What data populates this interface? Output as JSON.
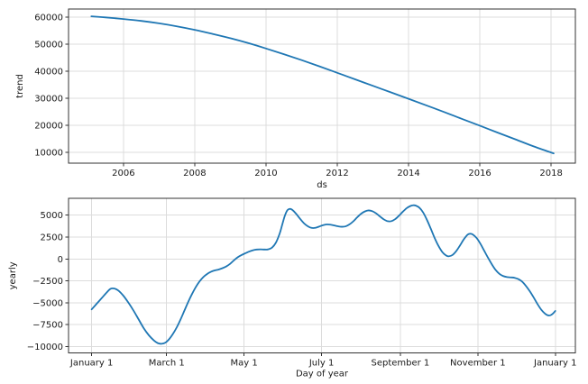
{
  "figure": {
    "background": "#ffffff",
    "text_color": "#1a1a1a",
    "spine_color": "#333333",
    "grid_color": "#dcdcdc",
    "line_color": "#1f77b4"
  },
  "chart_data": [
    {
      "id": "trend",
      "type": "line",
      "title": "",
      "xlabel": "ds",
      "ylabel": "trend",
      "legend": null,
      "grid": true,
      "xlim": [
        2004.46,
        2018.68
      ],
      "ylim": [
        6000,
        63000
      ],
      "xticks": [
        {
          "v": 2006,
          "label": "2006"
        },
        {
          "v": 2008,
          "label": "2008"
        },
        {
          "v": 2010,
          "label": "2010"
        },
        {
          "v": 2012,
          "label": "2012"
        },
        {
          "v": 2014,
          "label": "2014"
        },
        {
          "v": 2016,
          "label": "2016"
        },
        {
          "v": 2018,
          "label": "2018"
        }
      ],
      "yticks": [
        {
          "v": 10000,
          "label": "10000"
        },
        {
          "v": 20000,
          "label": "20000"
        },
        {
          "v": 30000,
          "label": "30000"
        },
        {
          "v": 40000,
          "label": "40000"
        },
        {
          "v": 50000,
          "label": "50000"
        },
        {
          "v": 60000,
          "label": "60000"
        }
      ],
      "x": [
        2005.1,
        2005.5,
        2006,
        2006.5,
        2007,
        2007.5,
        2008,
        2008.5,
        2009,
        2009.5,
        2010,
        2010.5,
        2011,
        2011.5,
        2012,
        2012.5,
        2013,
        2013.5,
        2014,
        2014.5,
        2015,
        2015.5,
        2016,
        2016.5,
        2017,
        2017.5,
        2018.07
      ],
      "y": [
        60300,
        59900,
        59300,
        58600,
        57700,
        56600,
        55300,
        53800,
        52200,
        50400,
        48400,
        46300,
        44100,
        41800,
        39400,
        37000,
        34600,
        32200,
        29800,
        27350,
        24900,
        22350,
        19850,
        17300,
        14800,
        12250,
        9600
      ]
    },
    {
      "id": "yearly",
      "type": "line",
      "title": "",
      "xlabel": "Day of year",
      "ylabel": "yearly",
      "legend": null,
      "grid": true,
      "xlim": [
        -18.2,
        380.8
      ],
      "ylim": [
        -10740,
        6925
      ],
      "xticks": [
        {
          "v": 0,
          "label": "January 1"
        },
        {
          "v": 59,
          "label": "March 1"
        },
        {
          "v": 120,
          "label": "May 1"
        },
        {
          "v": 181,
          "label": "July 1"
        },
        {
          "v": 243,
          "label": "September 1"
        },
        {
          "v": 304,
          "label": "November 1"
        },
        {
          "v": 365,
          "label": "January 1"
        }
      ],
      "yticks": [
        {
          "v": 5000,
          "label": "5000"
        },
        {
          "v": 2500,
          "label": "2500"
        },
        {
          "v": 0,
          "label": "0"
        },
        {
          "v": -2500,
          "label": "−2500"
        },
        {
          "v": -5000,
          "label": "−5000"
        },
        {
          "v": -7500,
          "label": "−7500"
        },
        {
          "v": -10000,
          "label": "−10000"
        }
      ],
      "x": [
        0,
        4,
        8,
        12,
        15,
        18,
        21,
        25,
        29,
        33,
        37,
        41,
        45,
        49,
        52,
        55,
        58,
        61,
        64,
        67,
        70,
        73,
        76,
        79,
        82,
        85,
        88,
        91,
        94,
        97,
        100,
        103,
        106,
        109,
        112,
        115,
        118,
        121,
        124,
        127,
        130,
        133,
        136,
        139,
        142,
        145,
        148,
        150,
        152,
        154,
        156,
        158,
        161,
        164,
        167,
        170,
        173,
        176,
        179,
        182,
        185,
        188,
        191,
        194,
        197,
        200,
        203,
        206,
        209,
        212,
        215,
        218,
        221,
        224,
        227,
        230,
        233,
        236,
        239,
        242,
        245,
        248,
        251,
        253,
        255,
        258,
        261,
        264,
        267,
        270,
        273,
        276,
        279,
        281,
        284,
        287,
        290,
        293,
        296,
        298,
        300,
        303,
        306,
        309,
        312,
        315,
        318,
        321,
        324,
        327,
        330,
        333,
        336,
        339,
        342,
        345,
        348,
        351,
        354,
        357,
        359,
        361,
        363,
        365
      ],
      "y": [
        -5750,
        -5100,
        -4450,
        -3800,
        -3400,
        -3380,
        -3600,
        -4200,
        -5000,
        -5900,
        -6900,
        -7900,
        -8700,
        -9300,
        -9600,
        -9680,
        -9550,
        -9150,
        -8550,
        -7800,
        -6900,
        -5900,
        -4900,
        -4000,
        -3200,
        -2550,
        -2050,
        -1700,
        -1450,
        -1300,
        -1200,
        -1050,
        -850,
        -550,
        -150,
        200,
        450,
        650,
        850,
        1000,
        1080,
        1100,
        1080,
        1100,
        1300,
        1850,
        2900,
        3900,
        4900,
        5550,
        5720,
        5600,
        5150,
        4600,
        4100,
        3750,
        3550,
        3550,
        3700,
        3850,
        3940,
        3920,
        3830,
        3730,
        3680,
        3730,
        3950,
        4300,
        4750,
        5150,
        5420,
        5540,
        5450,
        5200,
        4850,
        4520,
        4310,
        4320,
        4550,
        4950,
        5400,
        5800,
        6050,
        6130,
        6100,
        5850,
        5300,
        4450,
        3450,
        2400,
        1500,
        800,
        400,
        300,
        450,
        900,
        1550,
        2250,
        2780,
        2880,
        2800,
        2400,
        1750,
        950,
        150,
        -600,
        -1250,
        -1700,
        -1950,
        -2060,
        -2100,
        -2150,
        -2300,
        -2600,
        -3100,
        -3700,
        -4400,
        -5150,
        -5800,
        -6250,
        -6420,
        -6430,
        -6250,
        -5930
      ]
    }
  ]
}
